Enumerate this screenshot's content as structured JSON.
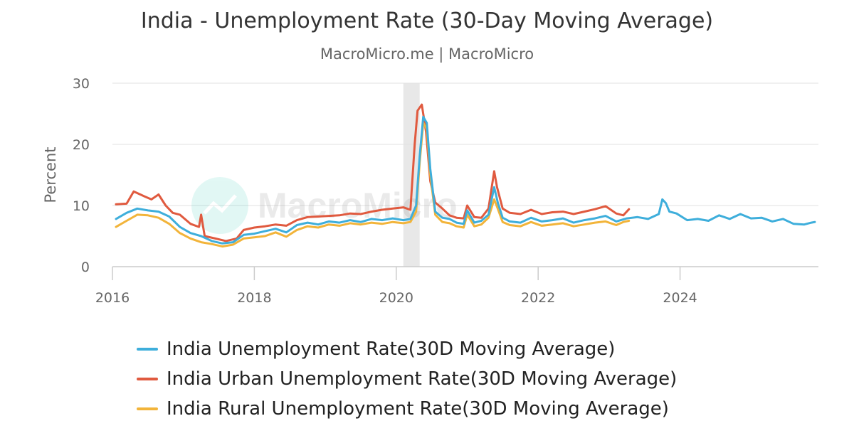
{
  "header": {
    "title": "India - Unemployment Rate (30-Day Moving Average)",
    "subtitle": "MacroMicro.me | MacroMicro"
  },
  "watermark": {
    "text": "MacroMicro"
  },
  "colors": {
    "total": "#3eaedb",
    "urban": "#e05a3f",
    "rural": "#f2b43a",
    "recession": "#e8e8e8",
    "grid": "#e2e2e2",
    "axis_text": "#666666"
  },
  "chart_data": {
    "type": "line",
    "title": "India - Unemployment Rate (30-Day Moving Average)",
    "ylabel": "Percent",
    "xlabel": "",
    "xlim": [
      2016.0,
      2025.95
    ],
    "ylim": [
      0,
      30
    ],
    "x_ticks": [
      2016,
      2018,
      2020,
      2022,
      2024
    ],
    "y_ticks": [
      0,
      10,
      20,
      30
    ],
    "grid": true,
    "legend_position": "bottom",
    "shaded_periods": [
      {
        "start": 2020.1,
        "end": 2020.33
      }
    ],
    "series": [
      {
        "name": "India Unemployment Rate(30D Moving Average)",
        "color": "#3eaedb",
        "x": [
          2016.05,
          2016.2,
          2016.35,
          2016.5,
          2016.65,
          2016.8,
          2016.95,
          2017.1,
          2017.25,
          2017.4,
          2017.55,
          2017.7,
          2017.85,
          2018.0,
          2018.15,
          2018.3,
          2018.45,
          2018.6,
          2018.75,
          2018.9,
          2019.05,
          2019.2,
          2019.35,
          2019.5,
          2019.65,
          2019.8,
          2019.95,
          2020.1,
          2020.2,
          2020.28,
          2020.33,
          2020.38,
          2020.43,
          2020.48,
          2020.55,
          2020.65,
          2020.75,
          2020.85,
          2020.95,
          2021.0,
          2021.1,
          2021.2,
          2021.3,
          2021.38,
          2021.43,
          2021.5,
          2021.6,
          2021.75,
          2021.9,
          2022.05,
          2022.2,
          2022.35,
          2022.5,
          2022.65,
          2022.8,
          2022.95,
          2023.1,
          2023.25,
          2023.4,
          2023.55,
          2023.7,
          2023.75,
          2023.8,
          2023.85,
          2023.95,
          2024.1,
          2024.25,
          2024.4,
          2024.55,
          2024.7,
          2024.85,
          2025.0,
          2025.15,
          2025.3,
          2025.45,
          2025.6,
          2025.75,
          2025.85,
          2025.9
        ],
        "values": [
          7.8,
          8.8,
          9.5,
          9.2,
          9.0,
          8.2,
          6.5,
          5.5,
          5.0,
          4.2,
          3.8,
          4.0,
          5.2,
          5.4,
          5.8,
          6.2,
          5.6,
          6.8,
          7.2,
          6.9,
          7.4,
          7.2,
          7.6,
          7.3,
          7.8,
          7.6,
          7.9,
          7.6,
          7.8,
          10.0,
          18.0,
          24.5,
          23.5,
          16.0,
          9.0,
          8.0,
          7.8,
          7.2,
          7.0,
          9.2,
          7.2,
          7.5,
          8.5,
          13.0,
          10.5,
          8.0,
          7.4,
          7.2,
          8.0,
          7.4,
          7.6,
          7.9,
          7.2,
          7.6,
          7.9,
          8.3,
          7.4,
          7.9,
          8.1,
          7.8,
          8.6,
          11.0,
          10.4,
          9.0,
          8.7,
          7.6,
          7.8,
          7.5,
          8.4,
          7.8,
          8.6,
          7.9,
          8.0,
          7.4,
          7.8,
          7.0,
          6.9,
          7.2,
          7.3
        ]
      },
      {
        "name": "India Urban Unemployment Rate(30D Moving Average)",
        "color": "#e05a3f",
        "x": [
          2016.05,
          2016.2,
          2016.3,
          2016.45,
          2016.55,
          2016.65,
          2016.75,
          2016.85,
          2016.95,
          2017.1,
          2017.22,
          2017.25,
          2017.3,
          2017.45,
          2017.6,
          2017.75,
          2017.85,
          2018.0,
          2018.15,
          2018.3,
          2018.45,
          2018.6,
          2018.75,
          2018.9,
          2019.05,
          2019.2,
          2019.35,
          2019.5,
          2019.65,
          2019.8,
          2019.95,
          2020.1,
          2020.2,
          2020.26,
          2020.3,
          2020.36,
          2020.42,
          2020.48,
          2020.55,
          2020.65,
          2020.75,
          2020.85,
          2020.95,
          2021.0,
          2021.1,
          2021.2,
          2021.3,
          2021.38,
          2021.42,
          2021.5,
          2021.6,
          2021.75,
          2021.9,
          2022.05,
          2022.2,
          2022.35,
          2022.5,
          2022.65,
          2022.8,
          2022.95,
          2023.1,
          2023.2,
          2023.28
        ],
        "values": [
          10.2,
          10.3,
          12.3,
          11.5,
          11.0,
          11.8,
          10.0,
          8.8,
          8.5,
          7.0,
          6.5,
          8.5,
          5.0,
          4.6,
          4.2,
          4.6,
          6.0,
          6.4,
          6.6,
          6.9,
          6.7,
          7.6,
          8.1,
          8.2,
          8.3,
          8.4,
          8.7,
          8.6,
          9.0,
          9.3,
          9.5,
          9.7,
          9.3,
          20.0,
          25.5,
          26.5,
          22.0,
          14.0,
          10.5,
          9.5,
          8.4,
          8.0,
          7.9,
          10.0,
          8.1,
          8.0,
          9.5,
          15.6,
          13.0,
          9.5,
          8.8,
          8.6,
          9.3,
          8.6,
          8.9,
          9.0,
          8.6,
          9.0,
          9.4,
          9.9,
          8.7,
          8.4,
          9.4
        ]
      },
      {
        "name": "India Rural Unemployment Rate(30D Moving Average)",
        "color": "#f2b43a",
        "x": [
          2016.05,
          2016.2,
          2016.35,
          2016.5,
          2016.65,
          2016.8,
          2016.95,
          2017.1,
          2017.25,
          2017.4,
          2017.55,
          2017.7,
          2017.85,
          2018.0,
          2018.15,
          2018.3,
          2018.45,
          2018.6,
          2018.75,
          2018.9,
          2019.05,
          2019.2,
          2019.35,
          2019.5,
          2019.65,
          2019.8,
          2019.95,
          2020.1,
          2020.2,
          2020.28,
          2020.33,
          2020.38,
          2020.43,
          2020.48,
          2020.55,
          2020.65,
          2020.75,
          2020.85,
          2020.95,
          2021.0,
          2021.1,
          2021.2,
          2021.3,
          2021.38,
          2021.43,
          2021.5,
          2021.6,
          2021.75,
          2021.9,
          2022.05,
          2022.2,
          2022.35,
          2022.5,
          2022.65,
          2022.8,
          2022.95,
          2023.1,
          2023.2,
          2023.28
        ],
        "values": [
          6.5,
          7.5,
          8.5,
          8.4,
          8.0,
          7.0,
          5.5,
          4.6,
          4.0,
          3.7,
          3.3,
          3.6,
          4.6,
          4.8,
          5.0,
          5.6,
          4.9,
          6.0,
          6.6,
          6.4,
          6.9,
          6.7,
          7.1,
          6.9,
          7.2,
          7.0,
          7.3,
          7.1,
          7.3,
          9.0,
          17.0,
          23.5,
          22.5,
          15.0,
          8.5,
          7.3,
          7.1,
          6.6,
          6.4,
          8.5,
          6.6,
          6.9,
          8.0,
          11.0,
          9.5,
          7.3,
          6.8,
          6.6,
          7.3,
          6.7,
          6.9,
          7.1,
          6.6,
          6.9,
          7.2,
          7.4,
          6.8,
          7.3,
          7.5
        ]
      }
    ]
  }
}
